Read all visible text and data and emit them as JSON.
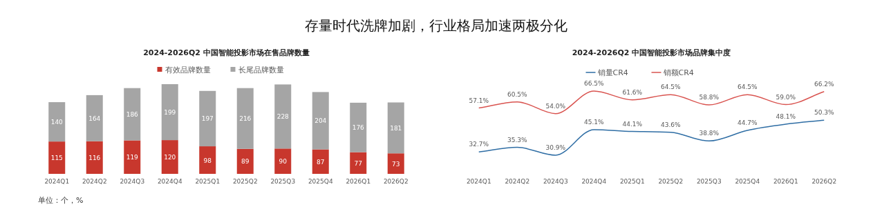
{
  "chart_data": [
    {
      "type": "bar",
      "title": "2024-2026Q2 中国智能投影市场在售品牌数量",
      "categories": [
        "2024Q1",
        "2024Q2",
        "2024Q3",
        "2024Q4",
        "2025Q1",
        "2025Q2",
        "2025Q3",
        "2025Q4",
        "2026Q1",
        "2026Q2"
      ],
      "stacked": true,
      "data_labels": true,
      "legend": "top",
      "series": [
        {
          "name": "有效品牌数量",
          "color": "#c8372d",
          "values": [
            115,
            116,
            119,
            120,
            98,
            89,
            90,
            87,
            77,
            73
          ]
        },
        {
          "name": "长尾品牌数量",
          "color": "#a5a5a5",
          "values": [
            140,
            164,
            186,
            199,
            197,
            216,
            228,
            204,
            176,
            181
          ]
        }
      ],
      "annotations": [
        "存量时代洗牌加剧，行业格局加速两极分化",
        "单位：个，%"
      ]
    },
    {
      "type": "line",
      "title": "2024-2026Q2 中国智能投影市场品牌集中度",
      "categories": [
        "2024Q1",
        "2024Q2",
        "2024Q3",
        "2024Q4",
        "2025Q1",
        "2025Q2",
        "2025Q3",
        "2025Q4",
        "2026Q1",
        "2026Q2"
      ],
      "legend": "top",
      "series": [
        {
          "name": "销量CR4",
          "color": "#2e6da4",
          "values": [
            32.7,
            35.3,
            30.9,
            45.1,
            44.1,
            43.6,
            38.8,
            44.7,
            48.1,
            50.3
          ],
          "value_labels": [
            "32.7%",
            "35.3%",
            "30.9%",
            "45.1%",
            "44.1%",
            "43.6%",
            "38.8%",
            "44.7%",
            "48.1%",
            "50.3%"
          ]
        },
        {
          "name": "销额CR4",
          "color": "#d9534f",
          "values": [
            57.1,
            60.5,
            54.0,
            66.5,
            61.6,
            64.5,
            58.8,
            64.5,
            59.0,
            66.2
          ],
          "value_labels": [
            "57.1%",
            "60.5%",
            "54.0%",
            "66.5%",
            "61.6%",
            "64.5%",
            "58.8%",
            "64.5%",
            "59.0%",
            "66.2%"
          ]
        }
      ]
    }
  ]
}
